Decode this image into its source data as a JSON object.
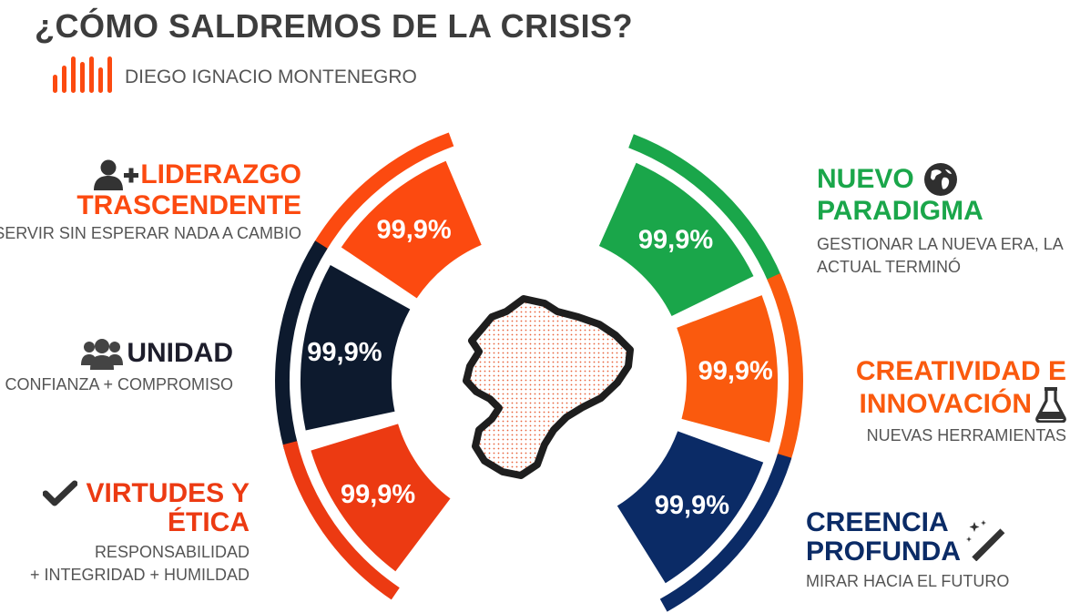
{
  "title": "¿CÓMO SALDREMOS DE LA CRISIS?",
  "author": "DIEGO IGNACIO MONTENEGRO",
  "colors": {
    "orange": "#fc4a10",
    "red_orange": "#ec3a12",
    "navy_dark": "#0d1a2e",
    "green": "#1aa64a",
    "orange_right": "#fa5a0e",
    "navy": "#0b2b66",
    "title_gray": "#3d3d3d"
  },
  "segments": {
    "liderazgo": {
      "title_line1": "LIDERAZGO",
      "title_line2": "TRASCENDENTE",
      "subtitle": "SERVIR SIN ESPERAR NADA A CAMBIO",
      "value": "99,9%",
      "icon": "user-plus-icon"
    },
    "unidad": {
      "title": "UNIDAD",
      "subtitle": "CONFIANZA + COMPROMISO",
      "value": "99,9%",
      "icon": "group-icon"
    },
    "virtudes": {
      "title_line1": "VIRTUDES Y",
      "title_line2": "ÉTICA",
      "subtitle_line1": "RESPONSABILIDAD",
      "subtitle_line2": "+ INTEGRIDAD + HUMILDAD",
      "value": "99,9%",
      "icon": "check-icon"
    },
    "paradigma": {
      "title_line1": "NUEVO",
      "title_line2": "PARADIGMA",
      "subtitle_line1": "GESTIONAR LA NUEVA ERA, LA",
      "subtitle_line2": "ACTUAL TERMINÓ",
      "value": "99,9%",
      "icon": "globe-icon"
    },
    "creatividad": {
      "title_line1": "CREATIVIDAD E",
      "title_line2": "INNOVACIÓN",
      "subtitle": "NUEVAS HERRAMIENTAS",
      "value": "99,9%",
      "icon": "flask-icon"
    },
    "creencia": {
      "title_line1": "CREENCIA",
      "title_line2": "PROFUNDA",
      "subtitle": "MIRAR HACIA EL FUTURO",
      "value": "99,9%",
      "icon": "magic-wand-icon"
    }
  }
}
